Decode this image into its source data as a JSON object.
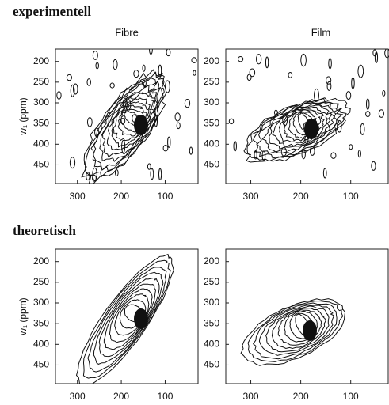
{
  "headings": [
    "experimentell",
    "theoretisch"
  ],
  "chart_data": [
    {
      "type": "contour",
      "title": "Fibre",
      "ylabel": "w₁ (ppm)",
      "xlim": [
        350,
        25
      ],
      "xticks": [
        300,
        200,
        100
      ],
      "ylim": [
        495,
        170
      ],
      "yticks": [
        200,
        250,
        300,
        350,
        400,
        450
      ]
    },
    {
      "type": "contour",
      "title": "Film",
      "xlim": [
        350,
        25
      ],
      "xticks": [
        300,
        200,
        100
      ],
      "ylim": [
        495,
        170
      ],
      "yticks": [
        200,
        250,
        300,
        350,
        400,
        450
      ]
    },
    {
      "type": "contour",
      "ylabel": "w₁ (ppm)",
      "xlim": [
        350,
        25
      ],
      "xticks": [
        300,
        200,
        100
      ],
      "ylim": [
        495,
        170
      ],
      "yticks": [
        200,
        250,
        300,
        350,
        400,
        450
      ]
    },
    {
      "type": "contour",
      "xlim": [
        350,
        25
      ],
      "xticks": [
        300,
        200,
        100
      ],
      "ylim": [
        495,
        170
      ],
      "yticks": [
        200,
        250,
        300,
        350,
        400,
        450
      ]
    }
  ]
}
